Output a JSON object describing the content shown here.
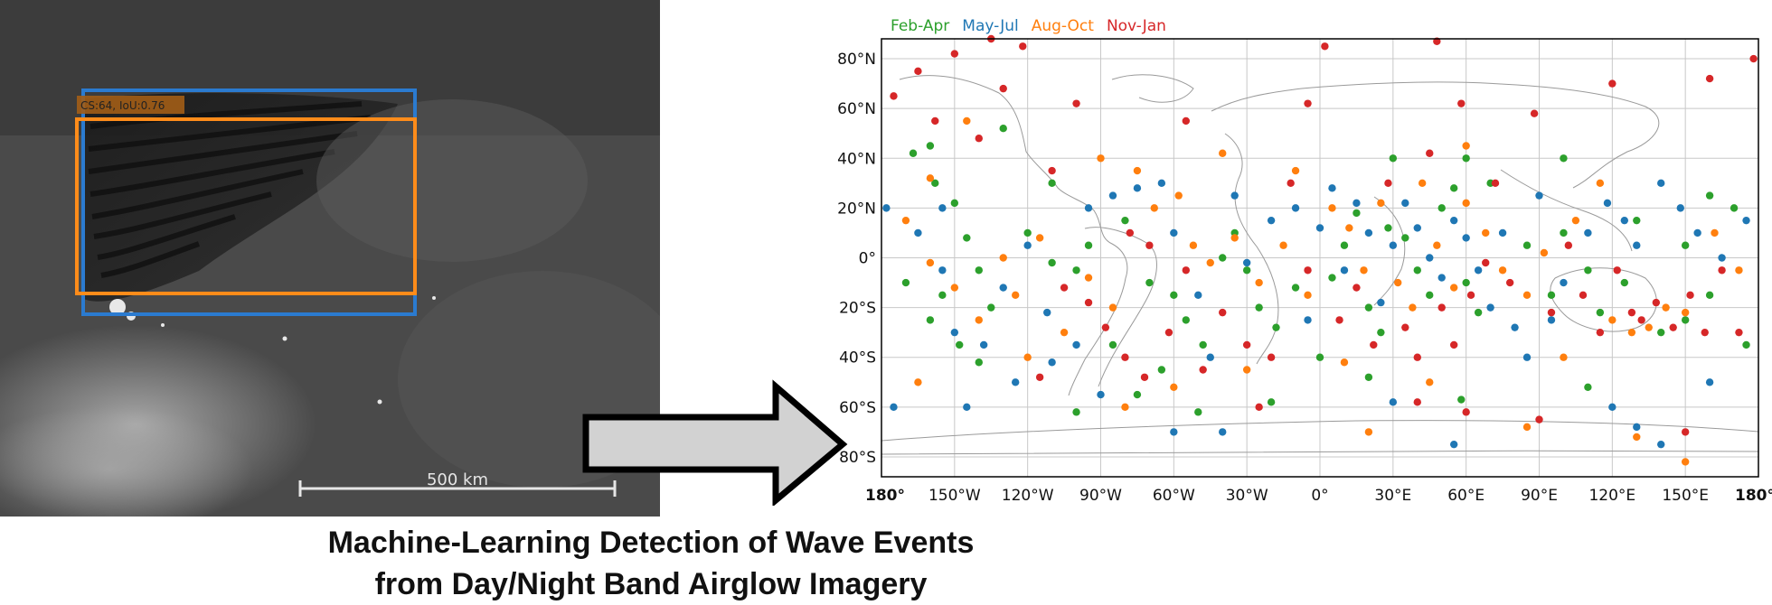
{
  "satellite_image": {
    "detection_label": "CS:64, IoU:0.76",
    "scale_label": "500 km",
    "box_colors": {
      "predicted": "#ff8c1a",
      "ground_truth": "#2b7bd0"
    }
  },
  "caption": {
    "line1": "Machine-Learning Detection of Wave Events",
    "line2": "from Day/Night Band Airglow Imagery"
  },
  "chart_data": {
    "type": "scatter",
    "title": "",
    "xlabel": "",
    "ylabel": "",
    "xlim": [
      -180,
      180
    ],
    "ylim": [
      -88,
      88
    ],
    "grid": true,
    "legend_position": "top-left, outside",
    "x_ticks": [
      {
        "value": -180,
        "label": "180°"
      },
      {
        "value": -150,
        "label": "150°W"
      },
      {
        "value": -120,
        "label": "120°W"
      },
      {
        "value": -90,
        "label": "90°W"
      },
      {
        "value": -60,
        "label": "60°W"
      },
      {
        "value": -30,
        "label": "30°W"
      },
      {
        "value": 0,
        "label": "0°"
      },
      {
        "value": 30,
        "label": "30°E"
      },
      {
        "value": 60,
        "label": "60°E"
      },
      {
        "value": 90,
        "label": "90°E"
      },
      {
        "value": 120,
        "label": "120°E"
      },
      {
        "value": 150,
        "label": "150°E"
      },
      {
        "value": 180,
        "label": "180°"
      }
    ],
    "y_ticks": [
      {
        "value": 80,
        "label": "80°N"
      },
      {
        "value": 60,
        "label": "60°N"
      },
      {
        "value": 40,
        "label": "40°N"
      },
      {
        "value": 20,
        "label": "20°N"
      },
      {
        "value": 0,
        "label": "0°"
      },
      {
        "value": -20,
        "label": "20°S"
      },
      {
        "value": -40,
        "label": "40°S"
      },
      {
        "value": -60,
        "label": "60°S"
      },
      {
        "value": -80,
        "label": "80°S"
      }
    ],
    "series": [
      {
        "name": "Feb-Apr",
        "color": "#2ca02c",
        "points": [
          [
            -167,
            42
          ],
          [
            -158,
            30
          ],
          [
            -150,
            22
          ],
          [
            -145,
            8
          ],
          [
            -140,
            -5
          ],
          [
            -155,
            -15
          ],
          [
            -160,
            -25
          ],
          [
            -148,
            -35
          ],
          [
            -170,
            -10
          ],
          [
            -135,
            -20
          ],
          [
            -120,
            10
          ],
          [
            -110,
            -2
          ],
          [
            -100,
            -5
          ],
          [
            -95,
            5
          ],
          [
            -80,
            15
          ],
          [
            -70,
            -10
          ],
          [
            -60,
            -15
          ],
          [
            -55,
            -25
          ],
          [
            -48,
            -35
          ],
          [
            -65,
            -45
          ],
          [
            -40,
            0
          ],
          [
            -35,
            10
          ],
          [
            -30,
            -5
          ],
          [
            -25,
            -20
          ],
          [
            -18,
            -28
          ],
          [
            -10,
            -12
          ],
          [
            5,
            -8
          ],
          [
            10,
            5
          ],
          [
            15,
            18
          ],
          [
            20,
            -20
          ],
          [
            25,
            -30
          ],
          [
            28,
            12
          ],
          [
            35,
            8
          ],
          [
            40,
            -5
          ],
          [
            45,
            -15
          ],
          [
            50,
            20
          ],
          [
            55,
            28
          ],
          [
            60,
            -10
          ],
          [
            65,
            -22
          ],
          [
            70,
            30
          ],
          [
            85,
            5
          ],
          [
            95,
            -15
          ],
          [
            100,
            10
          ],
          [
            110,
            -5
          ],
          [
            115,
            -22
          ],
          [
            125,
            -10
          ],
          [
            130,
            15
          ],
          [
            140,
            -30
          ],
          [
            150,
            5
          ],
          [
            160,
            -15
          ],
          [
            170,
            20
          ],
          [
            175,
            -35
          ],
          [
            -100,
            -62
          ],
          [
            -75,
            -55
          ],
          [
            -20,
            -58
          ],
          [
            20,
            -48
          ],
          [
            58,
            -57
          ],
          [
            110,
            -52
          ],
          [
            -160,
            45
          ],
          [
            -130,
            52
          ],
          [
            -50,
            -62
          ],
          [
            0,
            -40
          ],
          [
            100,
            40
          ],
          [
            160,
            25
          ],
          [
            -85,
            -35
          ],
          [
            -140,
            -42
          ],
          [
            60,
            40
          ],
          [
            30,
            40
          ],
          [
            -110,
            30
          ],
          [
            150,
            -25
          ]
        ]
      },
      {
        "name": "May-Jul",
        "color": "#1f77b4",
        "points": [
          [
            -178,
            20
          ],
          [
            -165,
            10
          ],
          [
            -155,
            -5
          ],
          [
            -150,
            -30
          ],
          [
            -145,
            -60
          ],
          [
            -138,
            -35
          ],
          [
            -130,
            -12
          ],
          [
            -120,
            5
          ],
          [
            -112,
            -22
          ],
          [
            -100,
            -35
          ],
          [
            -95,
            20
          ],
          [
            -85,
            25
          ],
          [
            -75,
            28
          ],
          [
            -65,
            30
          ],
          [
            -60,
            10
          ],
          [
            -50,
            -15
          ],
          [
            -45,
            -40
          ],
          [
            -40,
            -70
          ],
          [
            -30,
            -2
          ],
          [
            -20,
            15
          ],
          [
            -10,
            20
          ],
          [
            0,
            12
          ],
          [
            10,
            -5
          ],
          [
            15,
            22
          ],
          [
            20,
            10
          ],
          [
            25,
            -18
          ],
          [
            30,
            5
          ],
          [
            35,
            22
          ],
          [
            40,
            12
          ],
          [
            45,
            0
          ],
          [
            50,
            -8
          ],
          [
            55,
            15
          ],
          [
            60,
            8
          ],
          [
            65,
            -5
          ],
          [
            70,
            -20
          ],
          [
            80,
            -28
          ],
          [
            90,
            25
          ],
          [
            100,
            -10
          ],
          [
            110,
            10
          ],
          [
            118,
            22
          ],
          [
            125,
            15
          ],
          [
            130,
            5
          ],
          [
            140,
            30
          ],
          [
            148,
            20
          ],
          [
            155,
            10
          ],
          [
            165,
            0
          ],
          [
            175,
            15
          ],
          [
            120,
            -60
          ],
          [
            130,
            -68
          ],
          [
            140,
            -75
          ],
          [
            -175,
            -60
          ],
          [
            -110,
            -42
          ],
          [
            -90,
            -55
          ],
          [
            55,
            -75
          ],
          [
            30,
            -58
          ],
          [
            -60,
            -70
          ],
          [
            -125,
            -50
          ],
          [
            85,
            -40
          ],
          [
            -155,
            20
          ],
          [
            160,
            -50
          ],
          [
            -5,
            -25
          ],
          [
            75,
            10
          ],
          [
            95,
            -25
          ],
          [
            -35,
            25
          ],
          [
            5,
            28
          ]
        ]
      },
      {
        "name": "Aug-Oct",
        "color": "#ff7f0e",
        "points": [
          [
            -170,
            15
          ],
          [
            -160,
            -2
          ],
          [
            -150,
            -12
          ],
          [
            -140,
            -25
          ],
          [
            -130,
            0
          ],
          [
            -125,
            -15
          ],
          [
            -115,
            8
          ],
          [
            -105,
            -30
          ],
          [
            -95,
            -8
          ],
          [
            -85,
            -20
          ],
          [
            -75,
            35
          ],
          [
            -68,
            20
          ],
          [
            -58,
            25
          ],
          [
            -52,
            5
          ],
          [
            -45,
            -2
          ],
          [
            -35,
            8
          ],
          [
            -25,
            -10
          ],
          [
            -15,
            5
          ],
          [
            -5,
            -15
          ],
          [
            5,
            20
          ],
          [
            12,
            12
          ],
          [
            18,
            -5
          ],
          [
            25,
            22
          ],
          [
            32,
            -10
          ],
          [
            38,
            -20
          ],
          [
            42,
            30
          ],
          [
            48,
            5
          ],
          [
            55,
            -12
          ],
          [
            60,
            22
          ],
          [
            68,
            10
          ],
          [
            75,
            -5
          ],
          [
            85,
            -15
          ],
          [
            92,
            2
          ],
          [
            105,
            15
          ],
          [
            120,
            -25
          ],
          [
            128,
            -30
          ],
          [
            135,
            -28
          ],
          [
            142,
            -20
          ],
          [
            150,
            -22
          ],
          [
            162,
            10
          ],
          [
            172,
            -5
          ],
          [
            -120,
            -40
          ],
          [
            -60,
            -52
          ],
          [
            -30,
            -45
          ],
          [
            10,
            -42
          ],
          [
            45,
            -50
          ],
          [
            85,
            -68
          ],
          [
            130,
            -72
          ],
          [
            150,
            -82
          ],
          [
            -165,
            -50
          ],
          [
            -80,
            -60
          ],
          [
            20,
            -70
          ],
          [
            -145,
            55
          ],
          [
            -90,
            40
          ],
          [
            115,
            30
          ],
          [
            -10,
            35
          ],
          [
            -40,
            42
          ],
          [
            60,
            45
          ],
          [
            100,
            -40
          ],
          [
            -160,
            32
          ]
        ]
      },
      {
        "name": "Nov-Jan",
        "color": "#d62728",
        "points": [
          [
            -175,
            65
          ],
          [
            -165,
            75
          ],
          [
            -150,
            82
          ],
          [
            -130,
            68
          ],
          [
            -122,
            85
          ],
          [
            -110,
            35
          ],
          [
            -105,
            -12
          ],
          [
            -95,
            -18
          ],
          [
            -88,
            -28
          ],
          [
            -80,
            -40
          ],
          [
            -78,
            10
          ],
          [
            -70,
            5
          ],
          [
            -62,
            -30
          ],
          [
            -55,
            -5
          ],
          [
            -48,
            -45
          ],
          [
            -40,
            -22
          ],
          [
            -30,
            -35
          ],
          [
            -20,
            -40
          ],
          [
            -12,
            30
          ],
          [
            -5,
            -5
          ],
          [
            2,
            85
          ],
          [
            8,
            -25
          ],
          [
            15,
            -12
          ],
          [
            22,
            -35
          ],
          [
            28,
            30
          ],
          [
            35,
            -28
          ],
          [
            40,
            -40
          ],
          [
            45,
            42
          ],
          [
            50,
            -20
          ],
          [
            55,
            -35
          ],
          [
            58,
            62
          ],
          [
            62,
            -15
          ],
          [
            68,
            -2
          ],
          [
            72,
            30
          ],
          [
            78,
            -10
          ],
          [
            88,
            58
          ],
          [
            95,
            -22
          ],
          [
            102,
            5
          ],
          [
            108,
            -15
          ],
          [
            115,
            -30
          ],
          [
            122,
            -5
          ],
          [
            128,
            -22
          ],
          [
            132,
            -25
          ],
          [
            138,
            -18
          ],
          [
            145,
            -28
          ],
          [
            152,
            -15
          ],
          [
            158,
            -30
          ],
          [
            165,
            -5
          ],
          [
            172,
            -30
          ],
          [
            178,
            80
          ],
          [
            -158,
            55
          ],
          [
            -140,
            48
          ],
          [
            -115,
            -48
          ],
          [
            -72,
            -48
          ],
          [
            -25,
            -60
          ],
          [
            40,
            -58
          ],
          [
            60,
            -62
          ],
          [
            90,
            -65
          ],
          [
            150,
            -70
          ],
          [
            -5,
            62
          ],
          [
            48,
            87
          ],
          [
            -135,
            88
          ],
          [
            120,
            70
          ],
          [
            160,
            72
          ],
          [
            -55,
            55
          ],
          [
            -100,
            62
          ]
        ]
      }
    ]
  }
}
